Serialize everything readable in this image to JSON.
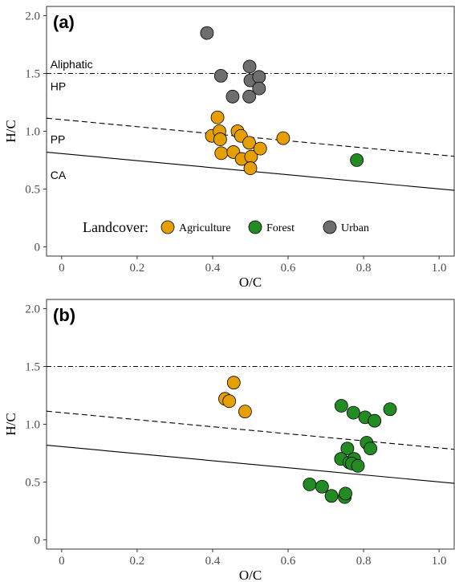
{
  "colors": {
    "Agriculture": "#E69F00",
    "Forest": "#228B22",
    "Urban": "#6E6E6E"
  },
  "chart_data": [
    {
      "type": "scatter",
      "panel_label": "(a)",
      "xlabel": "O/C",
      "ylabel": "H/C",
      "xlim": [
        -0.04,
        1.04
      ],
      "ylim": [
        -0.08,
        2.08
      ],
      "x_ticks": [
        {
          "value": 0,
          "label": "0"
        },
        {
          "value": 0.2,
          "label": "0.2"
        },
        {
          "value": 0.4,
          "label": "0.4"
        },
        {
          "value": 0.6,
          "label": "0.6"
        },
        {
          "value": 0.8,
          "label": "0.8"
        },
        {
          "value": 1.0,
          "label": "1.0"
        }
      ],
      "y_ticks": [
        {
          "value": 0,
          "label": "0"
        },
        {
          "value": 0.5,
          "label": "0.5"
        },
        {
          "value": 1.0,
          "label": "1.0"
        },
        {
          "value": 1.5,
          "label": "1.5"
        },
        {
          "value": 2.0,
          "label": "2.0"
        }
      ],
      "reference_lines": [
        {
          "style": "dotdash",
          "x": [
            -0.04,
            1.04
          ],
          "y": [
            1.5,
            1.5
          ]
        },
        {
          "style": "dashed",
          "x": [
            -0.04,
            1.04
          ],
          "y": [
            1.113,
            0.783
          ]
        },
        {
          "style": "solid",
          "x": [
            -0.04,
            1.04
          ],
          "y": [
            0.819,
            0.489
          ]
        }
      ],
      "region_labels": [
        {
          "text": "Aliphatic",
          "x": -0.03,
          "y": 1.58
        },
        {
          "text": "HP",
          "x": -0.03,
          "y": 1.39
        },
        {
          "text": "PP",
          "x": -0.03,
          "y": 0.93
        },
        {
          "text": "CA",
          "x": -0.03,
          "y": 0.62
        }
      ],
      "legend": {
        "title": "Landcover:",
        "position": "bottom-inside",
        "entries": [
          "Agriculture",
          "Forest",
          "Urban"
        ]
      },
      "series": [
        {
          "name": "Agriculture",
          "points": [
            {
              "x": 0.413,
              "y": 1.12
            },
            {
              "x": 0.398,
              "y": 0.96
            },
            {
              "x": 0.418,
              "y": 1.0
            },
            {
              "x": 0.42,
              "y": 0.93
            },
            {
              "x": 0.423,
              "y": 0.81
            },
            {
              "x": 0.455,
              "y": 0.82
            },
            {
              "x": 0.466,
              "y": 1.0
            },
            {
              "x": 0.475,
              "y": 0.96
            },
            {
              "x": 0.477,
              "y": 0.76
            },
            {
              "x": 0.497,
              "y": 0.9
            },
            {
              "x": 0.502,
              "y": 0.78
            },
            {
              "x": 0.5,
              "y": 0.68
            },
            {
              "x": 0.526,
              "y": 0.85
            },
            {
              "x": 0.587,
              "y": 0.94
            }
          ]
        },
        {
          "name": "Forest",
          "points": [
            {
              "x": 0.782,
              "y": 0.75
            }
          ]
        },
        {
          "name": "Urban",
          "points": [
            {
              "x": 0.385,
              "y": 1.85
            },
            {
              "x": 0.422,
              "y": 1.48
            },
            {
              "x": 0.453,
              "y": 1.3
            },
            {
              "x": 0.498,
              "y": 1.56
            },
            {
              "x": 0.5,
              "y": 1.44
            },
            {
              "x": 0.523,
              "y": 1.47
            },
            {
              "x": 0.523,
              "y": 1.37
            },
            {
              "x": 0.497,
              "y": 1.3
            }
          ]
        }
      ]
    },
    {
      "type": "scatter",
      "panel_label": "(b)",
      "xlabel": "O/C",
      "ylabel": "H/C",
      "xlim": [
        -0.04,
        1.04
      ],
      "ylim": [
        -0.08,
        2.08
      ],
      "x_ticks": [
        {
          "value": 0,
          "label": "0"
        },
        {
          "value": 0.2,
          "label": "0.2"
        },
        {
          "value": 0.4,
          "label": "0.4"
        },
        {
          "value": 0.6,
          "label": "0.6"
        },
        {
          "value": 0.8,
          "label": "0.8"
        },
        {
          "value": 1.0,
          "label": "1.0"
        }
      ],
      "y_ticks": [
        {
          "value": 0,
          "label": "0"
        },
        {
          "value": 0.5,
          "label": "0.5"
        },
        {
          "value": 1.0,
          "label": "1.0"
        },
        {
          "value": 1.5,
          "label": "1.5"
        },
        {
          "value": 2.0,
          "label": "2.0"
        }
      ],
      "reference_lines": [
        {
          "style": "dotdash",
          "x": [
            -0.04,
            1.04
          ],
          "y": [
            1.5,
            1.5
          ]
        },
        {
          "style": "dashed",
          "x": [
            -0.04,
            1.04
          ],
          "y": [
            1.113,
            0.783
          ]
        },
        {
          "style": "solid",
          "x": [
            -0.04,
            1.04
          ],
          "y": [
            0.819,
            0.489
          ]
        }
      ],
      "region_labels": [],
      "series": [
        {
          "name": "Agriculture",
          "points": [
            {
              "x": 0.456,
              "y": 1.36
            },
            {
              "x": 0.433,
              "y": 1.22
            },
            {
              "x": 0.444,
              "y": 1.2
            },
            {
              "x": 0.486,
              "y": 1.11
            }
          ]
        },
        {
          "name": "Forest",
          "points": [
            {
              "x": 0.741,
              "y": 1.16
            },
            {
              "x": 0.773,
              "y": 1.1
            },
            {
              "x": 0.804,
              "y": 1.06
            },
            {
              "x": 0.829,
              "y": 1.03
            },
            {
              "x": 0.87,
              "y": 1.13
            },
            {
              "x": 0.808,
              "y": 0.84
            },
            {
              "x": 0.818,
              "y": 0.79
            },
            {
              "x": 0.757,
              "y": 0.79
            },
            {
              "x": 0.74,
              "y": 0.7
            },
            {
              "x": 0.762,
              "y": 0.67
            },
            {
              "x": 0.775,
              "y": 0.7
            },
            {
              "x": 0.769,
              "y": 0.66
            },
            {
              "x": 0.785,
              "y": 0.64
            },
            {
              "x": 0.657,
              "y": 0.48
            },
            {
              "x": 0.69,
              "y": 0.46
            },
            {
              "x": 0.715,
              "y": 0.38
            },
            {
              "x": 0.75,
              "y": 0.37
            },
            {
              "x": 0.752,
              "y": 0.4
            }
          ]
        }
      ]
    }
  ]
}
